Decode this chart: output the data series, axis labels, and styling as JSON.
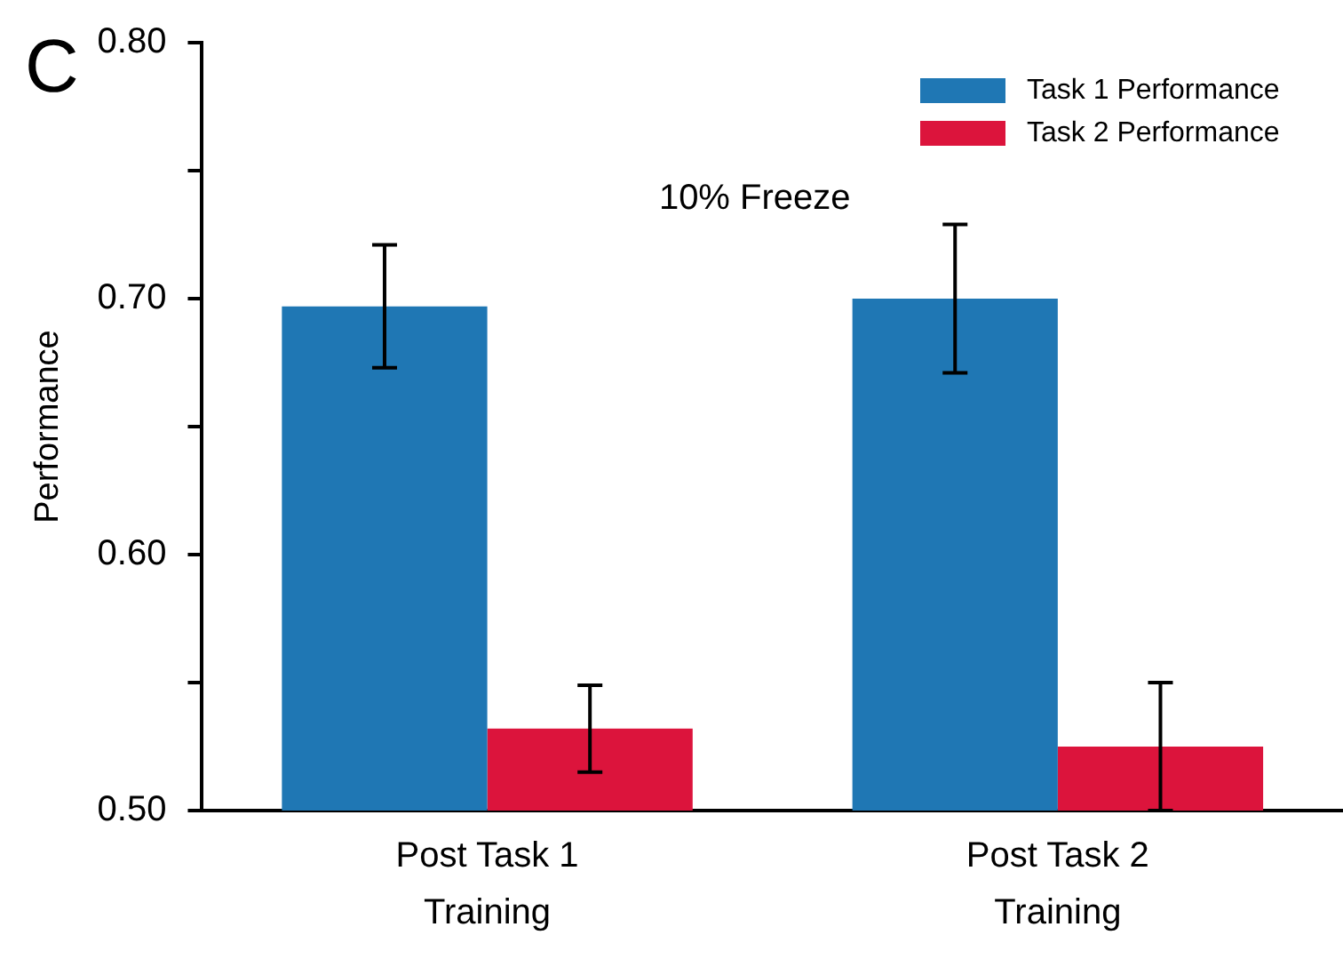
{
  "chart_data": {
    "type": "bar",
    "ylabel": "Performance",
    "categories": [
      "Post Task 1 Training",
      "Post Task 2 Training"
    ],
    "series": [
      {
        "name": "Task 1 Performance",
        "color": "#1f77b4",
        "values": [
          0.697,
          0.7
        ],
        "errors": [
          0.024,
          0.029
        ]
      },
      {
        "name": "Task 2 Performance",
        "color": "#dc143c",
        "values": [
          0.532,
          0.525
        ],
        "errors": [
          0.017,
          0.025
        ]
      }
    ],
    "ylim": [
      0.5,
      0.8
    ],
    "yticks": [
      {
        "value": 0.5,
        "label": "0.50"
      },
      {
        "value": 0.55,
        "label": null
      },
      {
        "value": 0.6,
        "label": "0.60"
      },
      {
        "value": 0.65,
        "label": null
      },
      {
        "value": 0.7,
        "label": "0.70"
      },
      {
        "value": 0.75,
        "label": null
      },
      {
        "value": 0.8,
        "label": "0.80"
      }
    ],
    "annotations": [
      "10% Freeze",
      "C"
    ],
    "grid": false,
    "legend": "top right"
  }
}
